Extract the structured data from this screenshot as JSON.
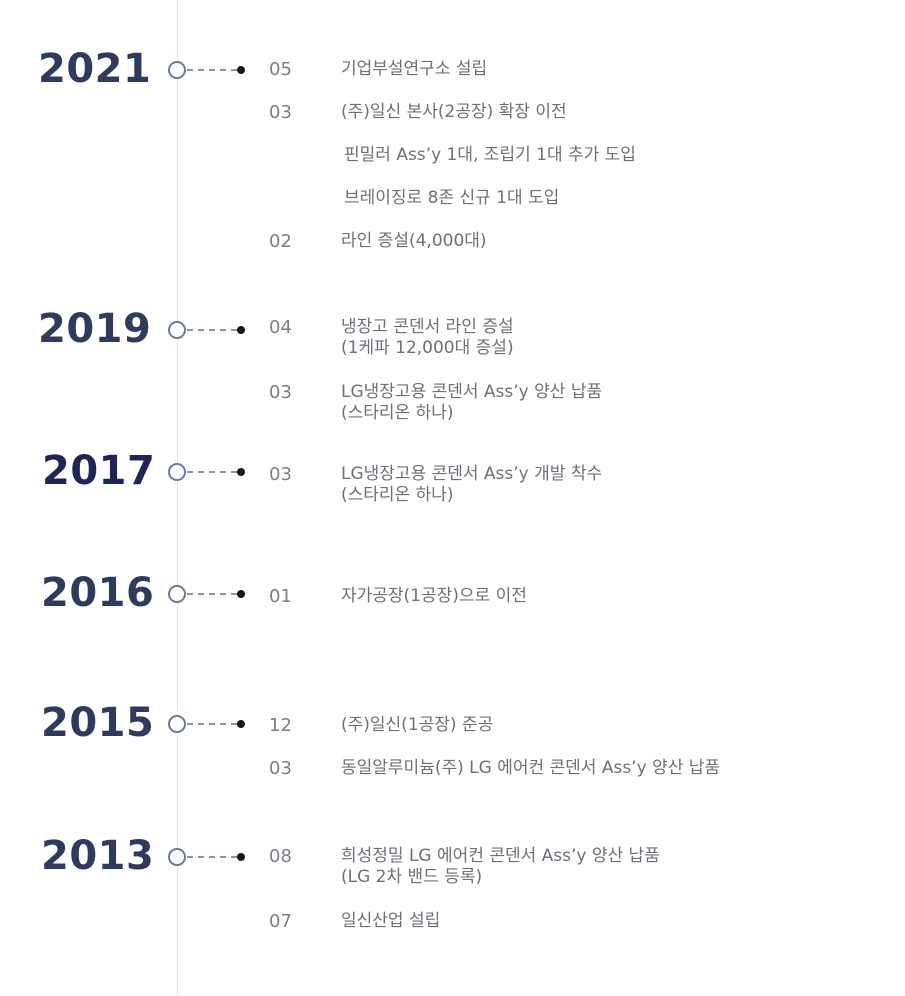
{
  "timeline": [
    {
      "year": "2021",
      "entries": [
        {
          "month": "05",
          "lines": [
            "기업부설연구소 설립"
          ]
        },
        {
          "month": "03",
          "lines": [
            "(주)일신 본사(2공장) 확장 이전"
          ]
        },
        {
          "month": "",
          "lines": [
            "핀밀러 Ass’y 1대, 조립기 1대 추가 도입"
          ]
        },
        {
          "month": "",
          "lines": [
            "브레이징로 8존 신규 1대 도입"
          ]
        },
        {
          "month": "02",
          "lines": [
            "라인 증설(4,000대)"
          ]
        }
      ]
    },
    {
      "year": "2019",
      "entries": [
        {
          "month": "04",
          "lines": [
            "냉장고 콘덴서 라인 증설",
            "(1케파 12,000대 증설)"
          ]
        },
        {
          "month": "03",
          "lines": [
            "LG냉장고용 콘덴서 Ass’y 양산 납품",
            "(스타리온 하나)"
          ]
        }
      ]
    },
    {
      "year": "2017",
      "entries": [
        {
          "month": "03",
          "lines": [
            "LG냉장고용 콘덴서 Ass’y 개발 착수",
            "(스타리온 하나)"
          ]
        }
      ]
    },
    {
      "year": "2016",
      "entries": [
        {
          "month": "01",
          "lines": [
            "자가공장(1공장)으로 이전"
          ]
        }
      ]
    },
    {
      "year": "2015",
      "entries": [
        {
          "month": "12",
          "lines": [
            "(주)일신(1공장) 준공"
          ]
        },
        {
          "month": "03",
          "lines": [
            "동일알루미늄(주) LG 에어컨 콘덴서 Ass’y 양산 납품"
          ]
        }
      ]
    },
    {
      "year": "2013",
      "entries": [
        {
          "month": "08",
          "lines": [
            "희성정밀 LG 에어컨 콘덴서 Ass’y 양산 납품",
            "(LG 2차 밴드 등록)"
          ]
        },
        {
          "month": "07",
          "lines": [
            "일신산업 설립"
          ]
        }
      ]
    }
  ]
}
